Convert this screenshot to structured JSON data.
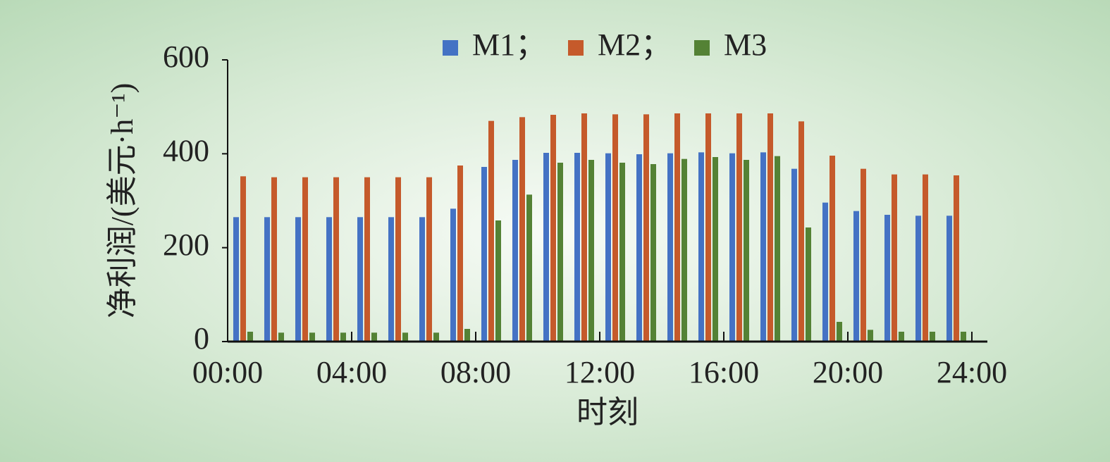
{
  "chart_data": {
    "type": "bar",
    "x_label": "时刻",
    "y_label": "净利润/(美元·h⁻¹)",
    "x": [
      0.5,
      1.5,
      2.5,
      3.5,
      4.5,
      5.5,
      6.5,
      7.5,
      8.5,
      9.5,
      10.5,
      11.5,
      12.5,
      13.5,
      14.5,
      15.5,
      16.5,
      17.5,
      18.5,
      19.5,
      20.5,
      21.5,
      22.5,
      23.5
    ],
    "series": [
      {
        "name": "M1；",
        "color": "#4472c4",
        "values": [
          265,
          265,
          265,
          265,
          265,
          265,
          265,
          283,
          372,
          387,
          402,
          402,
          401,
          399,
          401,
          403,
          401,
          403,
          368,
          296,
          278,
          270,
          268,
          268
        ]
      },
      {
        "name": "M2；",
        "color": "#c55a2b",
        "values": [
          352,
          350,
          350,
          350,
          350,
          350,
          350,
          375,
          470,
          478,
          483,
          486,
          484,
          484,
          486,
          486,
          486,
          486,
          469,
          396,
          368,
          356,
          356,
          354
        ]
      },
      {
        "name": "M3",
        "color": "#548235",
        "values": [
          21,
          19,
          19,
          19,
          19,
          19,
          19,
          27,
          258,
          313,
          381,
          387,
          381,
          378,
          389,
          393,
          387,
          395,
          243,
          42,
          25,
          21,
          21,
          21
        ]
      }
    ],
    "xlim": [
      0,
      24.5
    ],
    "xticks": [
      {
        "value": 0,
        "label": "00:00"
      },
      {
        "value": 4,
        "label": "04:00"
      },
      {
        "value": 8,
        "label": "08:00"
      },
      {
        "value": 12,
        "label": "12:00"
      },
      {
        "value": 16,
        "label": "16:00"
      },
      {
        "value": 20,
        "label": "20:00"
      },
      {
        "value": 24,
        "label": "24:00"
      }
    ],
    "ylim": [
      0,
      600
    ],
    "yticks": [
      0,
      200,
      400,
      600
    ],
    "grid": false,
    "legend": "top"
  }
}
